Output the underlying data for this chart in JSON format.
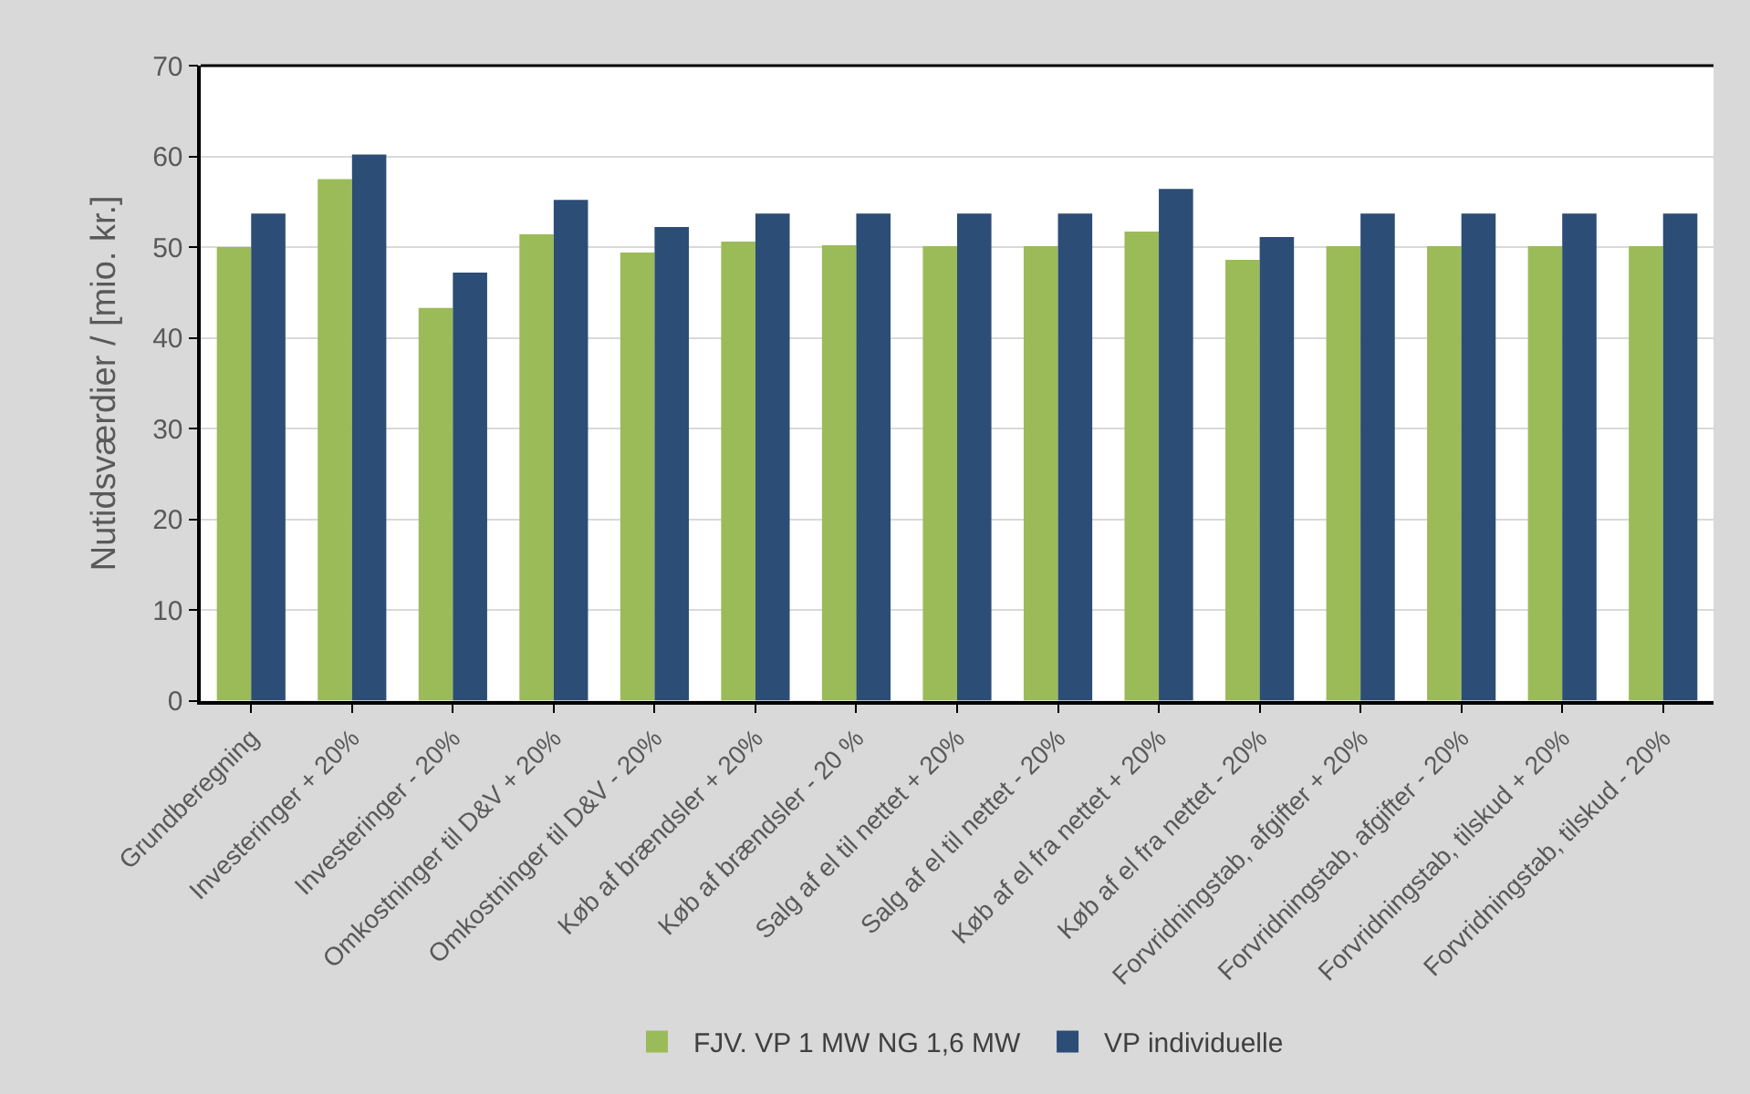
{
  "chart_data": {
    "type": "bar",
    "ylabel": "Nutidsværdier / [mio. kr.]",
    "categories": [
      "Grundberegning",
      "Investeringer + 20%",
      "Investeringer - 20%",
      "Omkostninger til D&V + 20%",
      "Omkostninger til D&V - 20%",
      "Køb af brændsler + 20%",
      "Køb af brændsler - 20 %",
      "Salg af el til nettet + 20%",
      "Salg af el til nettet - 20%",
      "Køb af el fra nettet + 20%",
      "Køb af el fra nettet - 20%",
      "Forvridningstab, afgifter + 20%",
      "Forvridningstab, afgifter - 20%",
      "Forvridningstab, tilskud + 20%",
      "Forvridningstab, tilskud - 20%"
    ],
    "series": [
      {
        "name": "FJV. VP 1 MW NG 1,6 MW",
        "color": "#9bbb59",
        "values": [
          50.0,
          57.5,
          43.3,
          51.4,
          49.4,
          50.6,
          50.2,
          50.1,
          50.1,
          51.7,
          48.6,
          50.1,
          50.1,
          50.1,
          50.1
        ]
      },
      {
        "name": "VP individuelle",
        "color": "#2c4d75",
        "values": [
          53.7,
          60.2,
          47.2,
          55.2,
          52.2,
          53.7,
          53.7,
          53.7,
          53.7,
          56.4,
          51.1,
          53.7,
          53.7,
          53.7,
          53.7
        ]
      }
    ],
    "ylim": [
      0,
      70
    ],
    "yticks": [
      0,
      10,
      20,
      30,
      40,
      50,
      60,
      70
    ],
    "grid": "y",
    "legend": "bottom"
  }
}
